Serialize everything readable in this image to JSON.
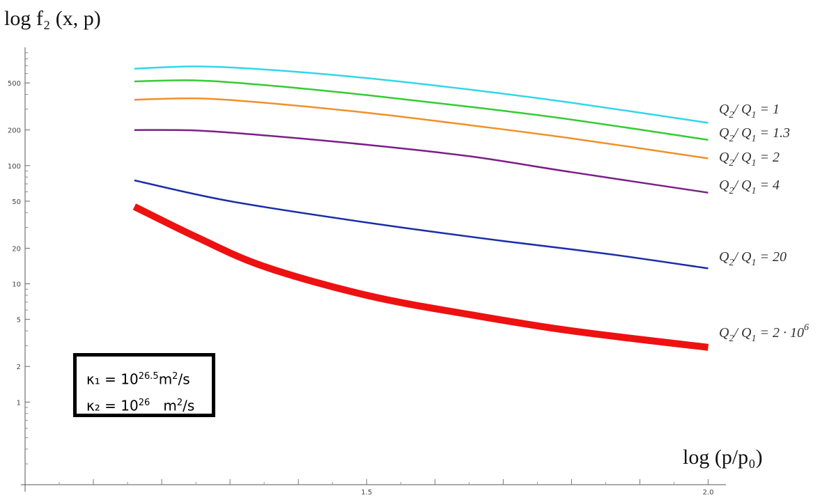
{
  "chart_data": {
    "type": "line",
    "title": "",
    "ylabel": "log f₂ (x, p)",
    "xlabel": "log (p/p₀)",
    "x_scale": "linear",
    "y_scale": "log",
    "xlim": [
      1.0,
      2.0
    ],
    "ylim": [
      0.2,
      1000
    ],
    "x_ticks": [
      1.5,
      2.0
    ],
    "x_tick_labels": [
      "1.5",
      "2.0"
    ],
    "y_ticks": [
      1,
      2,
      5,
      10,
      20,
      50,
      100,
      200,
      500
    ],
    "y_tick_labels": [
      "1",
      "2",
      "5",
      "10",
      "20",
      "50",
      "100",
      "200",
      "500"
    ],
    "grid": false,
    "series": [
      {
        "name": "Q2 / Q1 = 1",
        "color": "#33d6e8",
        "width": 2.5,
        "x": [
          1.16,
          1.25,
          1.35,
          1.5,
          1.65,
          1.8,
          2.0
        ],
        "y": [
          660,
          690,
          650,
          550,
          440,
          340,
          230
        ]
      },
      {
        "name": "Q2 / Q1 = 1.3",
        "color": "#33cc33",
        "width": 2.5,
        "x": [
          1.16,
          1.25,
          1.35,
          1.5,
          1.65,
          1.8,
          2.0
        ],
        "y": [
          515,
          525,
          480,
          395,
          315,
          245,
          165
        ]
      },
      {
        "name": "Q2 / Q1 = 2",
        "color": "#f0902a",
        "width": 2.5,
        "x": [
          1.16,
          1.25,
          1.35,
          1.5,
          1.65,
          1.8,
          2.0
        ],
        "y": [
          360,
          370,
          340,
          280,
          220,
          170,
          115
        ]
      },
      {
        "name": "Q2 / Q1 = 4",
        "color": "#7a1f86",
        "width": 2.5,
        "x": [
          1.16,
          1.25,
          1.35,
          1.5,
          1.65,
          1.8,
          2.0
        ],
        "y": [
          200,
          198,
          180,
          150,
          120,
          88,
          59
        ]
      },
      {
        "name": "Q2 / Q1 = 20",
        "color": "#1a2ea8",
        "width": 2.5,
        "x": [
          1.16,
          1.3,
          1.5,
          1.7,
          1.85,
          2.0
        ],
        "y": [
          75,
          50,
          33,
          23,
          18,
          13.5
        ]
      },
      {
        "name": "Q2 / Q1 = 2 · 10^6",
        "color": "#ee1111",
        "width": 10,
        "x": [
          1.16,
          1.25,
          1.35,
          1.5,
          1.65,
          1.8,
          2.0
        ],
        "y": [
          45,
          25,
          14,
          8,
          5.5,
          4,
          2.9
        ]
      }
    ],
    "series_labels": [
      {
        "num": "Q",
        "num_sub": "2",
        "den": "Q",
        "den_sub": "1",
        "rhs": " = 1"
      },
      {
        "num": "Q",
        "num_sub": "2",
        "den": "Q",
        "den_sub": "1",
        "rhs": " = 1.3"
      },
      {
        "num": "Q",
        "num_sub": "2",
        "den": "Q",
        "den_sub": "1",
        "rhs": " = 2"
      },
      {
        "num": "Q",
        "num_sub": "2",
        "den": "Q",
        "den_sub": "1",
        "rhs": " = 4"
      },
      {
        "num": "Q",
        "num_sub": "2",
        "den": "Q",
        "den_sub": "1",
        "rhs": " = 20"
      },
      {
        "num": "Q",
        "num_sub": "2",
        "den": "Q",
        "den_sub": "1",
        "rhs": " = 2 · 10",
        "rhs_sup": "6"
      }
    ],
    "annotation": {
      "line1": {
        "symbol": "κ₁ = 10",
        "exp": "26.5",
        "unit": "m",
        "unit_exp": "2",
        "unit_tail": "/s"
      },
      "line2": {
        "symbol": "κ₂ = 10",
        "exp": "26",
        "unit": "m",
        "unit_exp": "2",
        "unit_tail": "/s"
      }
    }
  }
}
